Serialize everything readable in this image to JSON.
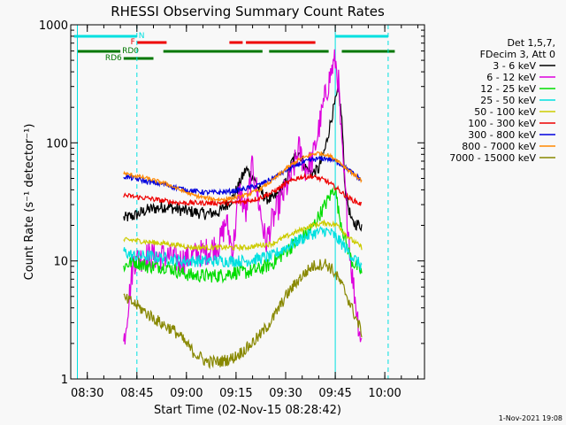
{
  "chart_data": {
    "type": "line",
    "title": "RHESSI Observing Summary Count Rates",
    "xlabel": "Start Time (02-Nov-15 08:28:42)",
    "ylabel": "Count Rate (s⁻¹ detector⁻¹)",
    "yscale": "log",
    "xlim_minutes_after_0828": [
      -3,
      104
    ],
    "ylim": [
      1,
      1000
    ],
    "x_ticks": [
      {
        "label": "08:30",
        "minute": 2
      },
      {
        "label": "08:45",
        "minute": 17
      },
      {
        "label": "09:00",
        "minute": 32
      },
      {
        "label": "09:15",
        "minute": 47
      },
      {
        "label": "09:30",
        "minute": 62
      },
      {
        "label": "09:45",
        "minute": 77
      },
      {
        "label": "10:00",
        "minute": 92
      }
    ],
    "y_tick_labels": [
      {
        "label": "1",
        "value": 1
      },
      {
        "label": "10",
        "value": 10
      },
      {
        "label": "100",
        "value": 100
      },
      {
        "label": "1000",
        "value": 1000
      }
    ],
    "legend_header": [
      "Det 1,5,7,",
      "FDecim 3, Att 0"
    ],
    "legend_position": "right",
    "data_window_minutes": [
      13,
      85
    ],
    "series": [
      {
        "name": "3 - 6 keV",
        "color": "#000000",
        "x": [
          13,
          16,
          20,
          26,
          30,
          34,
          38,
          42,
          46,
          48,
          50,
          52,
          54,
          56,
          58,
          60,
          62,
          64,
          66,
          68,
          70,
          72,
          74,
          76,
          77,
          78,
          79,
          80,
          82,
          85
        ],
        "values": [
          23,
          24,
          27,
          29,
          27,
          26,
          25,
          26,
          34,
          45,
          60,
          52,
          40,
          34,
          33,
          38,
          46,
          70,
          85,
          62,
          55,
          60,
          90,
          170,
          220,
          280,
          160,
          40,
          21,
          20
        ]
      },
      {
        "name": "6 - 12 keV",
        "color": "#dd00dd",
        "x": [
          13,
          16,
          20,
          26,
          30,
          34,
          38,
          42,
          44,
          46,
          48,
          50,
          52,
          54,
          56,
          58,
          60,
          62,
          64,
          66,
          68,
          70,
          72,
          74,
          76,
          77,
          78,
          79,
          80,
          82,
          84,
          85
        ],
        "values": [
          2,
          10,
          11,
          11,
          10,
          11,
          12,
          14,
          22,
          12,
          40,
          25,
          65,
          30,
          14,
          22,
          30,
          40,
          55,
          90,
          60,
          70,
          130,
          250,
          420,
          500,
          320,
          90,
          40,
          8,
          3,
          2
        ]
      },
      {
        "name": "12 - 25 keV",
        "color": "#00dd00",
        "x": [
          13,
          16,
          20,
          26,
          30,
          34,
          38,
          42,
          46,
          50,
          54,
          58,
          62,
          66,
          70,
          72,
          74,
          76,
          77,
          78,
          79,
          80,
          82,
          85
        ],
        "values": [
          9,
          10,
          9,
          9,
          8,
          7.5,
          7.5,
          7.5,
          8,
          8,
          8.5,
          9.5,
          12,
          15,
          19,
          24,
          30,
          38,
          42,
          26,
          20,
          15,
          10,
          8
        ]
      },
      {
        "name": "25 - 50 keV",
        "color": "#00e0e0",
        "x": [
          13,
          16,
          20,
          26,
          30,
          34,
          38,
          42,
          46,
          50,
          54,
          58,
          62,
          66,
          70,
          74,
          76,
          78,
          80,
          82,
          85
        ],
        "values": [
          12,
          11,
          11,
          10.5,
          10,
          10,
          10,
          10,
          10,
          10,
          10.5,
          11,
          13,
          15,
          17,
          18,
          17,
          15,
          13,
          11,
          9
        ]
      },
      {
        "name": "50 - 100 keV",
        "color": "#cccc00",
        "x": [
          13,
          16,
          20,
          26,
          30,
          34,
          38,
          42,
          46,
          50,
          54,
          58,
          62,
          66,
          70,
          74,
          76,
          78,
          80,
          82,
          85
        ],
        "values": [
          15,
          15,
          14.5,
          14,
          13.5,
          13,
          13,
          13,
          13,
          13,
          13.5,
          14,
          16,
          18,
          20,
          21,
          20.5,
          20,
          17,
          15,
          13
        ]
      },
      {
        "name": "100 - 300 keV",
        "color": "#ee0000",
        "x": [
          13,
          16,
          20,
          26,
          30,
          34,
          38,
          42,
          46,
          50,
          54,
          58,
          62,
          66,
          70,
          74,
          76,
          78,
          80,
          82,
          85
        ],
        "values": [
          36,
          35,
          34,
          32,
          31,
          31,
          31,
          31,
          31,
          32,
          34,
          38,
          45,
          51,
          52,
          48,
          44,
          40,
          36,
          33,
          30
        ]
      },
      {
        "name": "300 - 800 keV",
        "color": "#0000dd",
        "x": [
          13,
          16,
          20,
          26,
          30,
          34,
          38,
          42,
          46,
          50,
          54,
          58,
          62,
          66,
          70,
          74,
          76,
          78,
          80,
          82,
          85
        ],
        "values": [
          52,
          50,
          47,
          44,
          41,
          39,
          38,
          38,
          39,
          41,
          44,
          50,
          58,
          66,
          72,
          74,
          72,
          68,
          62,
          56,
          48
        ]
      },
      {
        "name": "800 - 7000 keV",
        "color": "#ff8800",
        "x": [
          13,
          16,
          20,
          26,
          30,
          34,
          38,
          42,
          46,
          50,
          54,
          58,
          62,
          66,
          70,
          72,
          74,
          76,
          78,
          80,
          82,
          85
        ],
        "values": [
          55,
          53,
          50,
          45,
          40,
          36,
          34,
          33,
          34,
          36,
          40,
          48,
          60,
          72,
          80,
          82,
          80,
          76,
          70,
          62,
          56,
          48
        ]
      },
      {
        "name": "7000 - 15000 keV",
        "color": "#888800",
        "x": [
          13,
          16,
          20,
          24,
          28,
          30,
          34,
          38,
          42,
          46,
          50,
          54,
          58,
          62,
          66,
          70,
          74,
          76,
          78,
          80,
          82,
          85
        ],
        "values": [
          4.8,
          4.4,
          3.6,
          3,
          2.6,
          2.3,
          1.7,
          1.4,
          1.4,
          1.5,
          1.8,
          2.3,
          3.2,
          5,
          7,
          9,
          9.5,
          8.5,
          7,
          5.5,
          4,
          2.5
        ]
      }
    ],
    "state_bars": [
      {
        "name": "N",
        "color": "#00e0e0",
        "row": 1,
        "segments": [
          [
            -2,
            17
          ],
          [
            77,
            93
          ]
        ]
      },
      {
        "name": "F",
        "color": "#ee0000",
        "row": 2,
        "segments": [
          [
            17,
            26
          ],
          [
            45,
            49
          ],
          [
            50,
            71
          ]
        ]
      },
      {
        "name": "RD0",
        "color": "#007700",
        "row": 3,
        "segments": [
          [
            -1,
            12
          ],
          [
            25,
            55
          ],
          [
            57,
            75
          ],
          [
            79,
            95
          ]
        ]
      },
      {
        "name": "RD6",
        "color": "#007700",
        "row": 4,
        "segments": [
          [
            13,
            22
          ]
        ]
      }
    ],
    "vertical_markers": [
      {
        "minute": -1,
        "color": "#00e0e0",
        "style": "solid"
      },
      {
        "minute": 17,
        "color": "#00e0e0",
        "style": "dashed"
      },
      {
        "minute": 77,
        "color": "#00e0e0",
        "style": "solid"
      },
      {
        "minute": 93,
        "color": "#00e0e0",
        "style": "dashed"
      }
    ],
    "footer_timestamp": "1-Nov-2021 19:08"
  }
}
